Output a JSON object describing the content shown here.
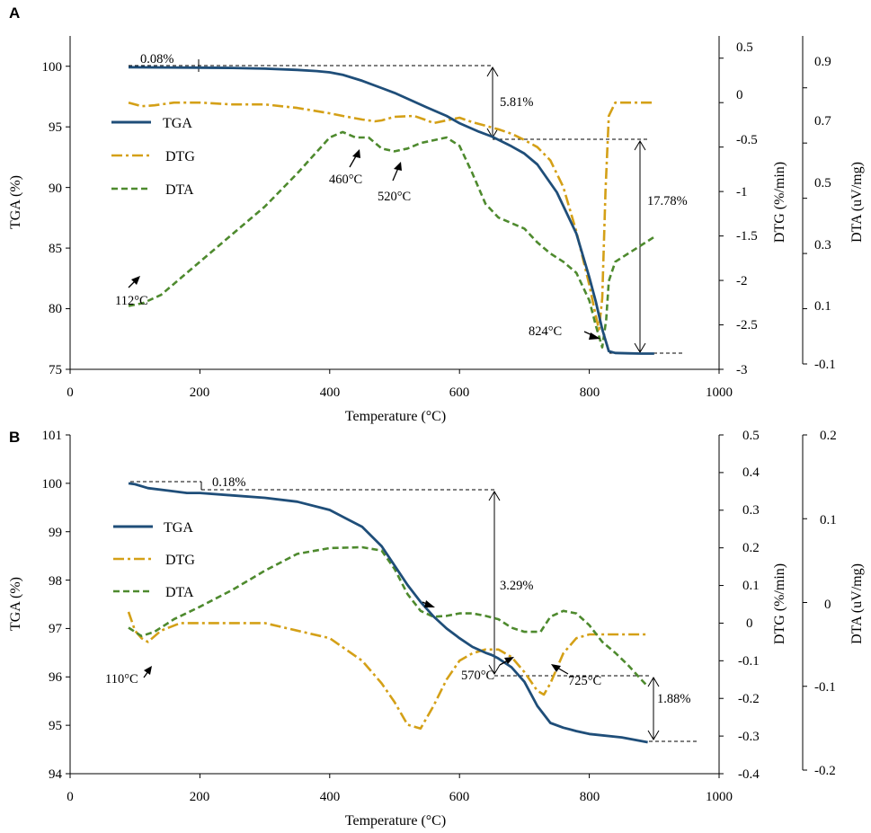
{
  "colors": {
    "tga": "#1f4e79",
    "dtg": "#d4a017",
    "dta": "#4e8a2e",
    "axis": "#000000",
    "guide": "#000000"
  },
  "chart_data": [
    {
      "panel": "A",
      "type": "line",
      "xlabel": "Temperature (°C)",
      "y1label": "TGA (%)",
      "y2label": "DTG (%/min)",
      "y3label": "DTA (uV/mg)",
      "xlim": [
        0,
        1000
      ],
      "y1lim": [
        75,
        102.5
      ],
      "y2lim": [
        -3,
        0.75
      ],
      "y3lim": [
        -0.1,
        1.0
      ],
      "xticks": [
        "0",
        "200",
        "400",
        "600",
        "800",
        "1000"
      ],
      "y1ticks": [
        "75",
        "80",
        "85",
        "90",
        "95",
        "100"
      ],
      "y2ticks": [
        "-3",
        "-2.5",
        "-2",
        "-1.5",
        "-1",
        "-0.5",
        "0",
        "0.5"
      ],
      "y3ticks": [
        "-0.1",
        "0.1",
        "0.3",
        "0.5",
        "0.7",
        "0.9"
      ],
      "legend": [
        "TGA",
        "DTG",
        "DTA"
      ],
      "series": [
        {
          "name": "TGA",
          "axis": "y1",
          "x": [
            90,
            150,
            200,
            250,
            300,
            350,
            380,
            400,
            420,
            450,
            480,
            500,
            550,
            580,
            600,
            630,
            650,
            680,
            700,
            720,
            750,
            780,
            800,
            810,
            820,
            830,
            840,
            860,
            880,
            900
          ],
          "values": [
            99.92,
            99.9,
            99.88,
            99.86,
            99.8,
            99.7,
            99.6,
            99.5,
            99.3,
            98.8,
            98.2,
            97.8,
            96.6,
            95.9,
            95.3,
            94.6,
            94.2,
            93.4,
            92.8,
            91.9,
            89.6,
            86.2,
            82.6,
            80.6,
            78.3,
            76.5,
            76.35,
            76.32,
            76.3,
            76.3
          ]
        },
        {
          "name": "DTG",
          "axis": "y2",
          "x": [
            90,
            110,
            130,
            160,
            200,
            250,
            300,
            350,
            400,
            420,
            450,
            470,
            480,
            500,
            530,
            550,
            560,
            580,
            600,
            620,
            640,
            660,
            680,
            700,
            720,
            740,
            760,
            780,
            790,
            800,
            810,
            815,
            820,
            825,
            830,
            840,
            850,
            860,
            880,
            900
          ],
          "values": [
            0,
            -0.04,
            -0.03,
            0,
            0,
            -0.02,
            -0.02,
            -0.06,
            -0.12,
            -0.15,
            -0.19,
            -0.21,
            -0.2,
            -0.16,
            -0.15,
            -0.2,
            -0.23,
            -0.2,
            -0.17,
            -0.22,
            -0.26,
            -0.3,
            -0.35,
            -0.42,
            -0.5,
            -0.65,
            -0.95,
            -1.45,
            -1.75,
            -2.05,
            -2.4,
            -2.55,
            -2.2,
            -1.0,
            -0.15,
            0,
            0,
            0,
            0,
            0
          ]
        },
        {
          "name": "DTA",
          "axis": "y3",
          "x": [
            90,
            112,
            140,
            200,
            250,
            300,
            350,
            400,
            420,
            440,
            460,
            480,
            500,
            520,
            540,
            560,
            580,
            600,
            620,
            640,
            660,
            680,
            700,
            720,
            740,
            760,
            780,
            800,
            810,
            820,
            826,
            830,
            840,
            860,
            880,
            900
          ],
          "values": [
            0.11,
            0.12,
            0.15,
            0.27,
            0.37,
            0.47,
            0.59,
            0.72,
            0.74,
            0.72,
            0.72,
            0.68,
            0.67,
            0.68,
            0.7,
            0.71,
            0.72,
            0.69,
            0.59,
            0.48,
            0.43,
            0.41,
            0.39,
            0.34,
            0.3,
            0.27,
            0.23,
            0.13,
            0.04,
            -0.04,
            0.06,
            0.2,
            0.27,
            0.3,
            0.33,
            0.36
          ]
        }
      ],
      "annotations": [
        {
          "text": "0.08%",
          "x": 100,
          "y": 100.2
        },
        {
          "text": "5.81%",
          "x": 655,
          "y": 97.3
        },
        {
          "text": "17.78%",
          "x": 880,
          "y": 88.5
        },
        {
          "text": "460°C",
          "x": 415,
          "y": 89.9
        },
        {
          "text": "520°C",
          "x": 475,
          "y": 88.9
        },
        {
          "text": "112°C",
          "x": 118,
          "y": 79.7
        },
        {
          "text": "824°C",
          "x": 765,
          "y": 77.1
        }
      ]
    },
    {
      "panel": "B",
      "type": "line",
      "xlabel": "Temperature (°C)",
      "y1label": "TGA (%)",
      "y2label": "DTG (%/min)",
      "y3label": "DTA (uV/mg)",
      "xlim": [
        0,
        1000
      ],
      "y1lim": [
        94,
        101
      ],
      "y2lim": [
        -0.4,
        0.5
      ],
      "y3lim": [
        -0.2,
        0.2
      ],
      "xticks": [
        "0",
        "200",
        "400",
        "600",
        "800",
        "1000"
      ],
      "y1ticks": [
        "94",
        "95",
        "96",
        "97",
        "98",
        "99",
        "100",
        "101"
      ],
      "y2ticks": [
        "-0.4",
        "-0.3",
        "-0.2",
        "-0.1",
        "0",
        "0.1",
        "0.2",
        "0.3",
        "0.4",
        "0.5"
      ],
      "y3ticks": [
        "-0.2",
        "-0.1",
        "0",
        "0.1",
        "0.2"
      ],
      "legend": [
        "TGA",
        "DTG",
        "DTA"
      ],
      "series": [
        {
          "name": "TGA",
          "axis": "y1",
          "x": [
            90,
            100,
            120,
            150,
            180,
            200,
            250,
            300,
            350,
            400,
            450,
            480,
            500,
            520,
            540,
            560,
            580,
            600,
            620,
            640,
            650,
            660,
            680,
            700,
            720,
            740,
            760,
            780,
            800,
            850,
            890
          ],
          "values": [
            100,
            99.98,
            99.9,
            99.85,
            99.8,
            99.8,
            99.75,
            99.7,
            99.62,
            99.45,
            99.1,
            98.7,
            98.3,
            97.9,
            97.55,
            97.25,
            97.0,
            96.8,
            96.62,
            96.5,
            96.45,
            96.38,
            96.2,
            95.9,
            95.4,
            95.05,
            94.95,
            94.88,
            94.82,
            94.75,
            94.65
          ]
        },
        {
          "name": "DTG",
          "axis": "y2",
          "x": [
            90,
            100,
            110,
            120,
            140,
            170,
            200,
            250,
            300,
            350,
            400,
            450,
            480,
            500,
            520,
            540,
            560,
            580,
            600,
            620,
            640,
            660,
            680,
            700,
            720,
            730,
            740,
            760,
            780,
            800,
            850,
            890
          ],
          "values": [
            0.03,
            -0.02,
            -0.04,
            -0.05,
            -0.02,
            0,
            0,
            0,
            0,
            -0.02,
            -0.04,
            -0.1,
            -0.16,
            -0.21,
            -0.27,
            -0.28,
            -0.22,
            -0.15,
            -0.1,
            -0.08,
            -0.07,
            -0.07,
            -0.09,
            -0.13,
            -0.18,
            -0.19,
            -0.16,
            -0.08,
            -0.04,
            -0.03,
            -0.03,
            -0.03
          ]
        },
        {
          "name": "DTA",
          "axis": "y3",
          "x": [
            90,
            110,
            130,
            160,
            200,
            250,
            300,
            350,
            400,
            450,
            480,
            500,
            520,
            540,
            560,
            580,
            600,
            620,
            640,
            660,
            680,
            700,
            725,
            740,
            760,
            780,
            800,
            820,
            840,
            860,
            880,
            890
          ],
          "values": [
            -0.03,
            -0.04,
            -0.035,
            -0.02,
            -0.005,
            0.015,
            0.038,
            0.058,
            0.065,
            0.066,
            0.062,
            0.04,
            0.01,
            -0.01,
            -0.017,
            -0.016,
            -0.013,
            -0.013,
            -0.016,
            -0.02,
            -0.03,
            -0.035,
            -0.035,
            -0.017,
            -0.01,
            -0.013,
            -0.027,
            -0.047,
            -0.06,
            -0.075,
            -0.092,
            -0.1
          ]
        }
      ],
      "annotations": [
        {
          "text": "0.18%",
          "x": 220,
          "y": 100.05
        },
        {
          "text": "3.29%",
          "x": 655,
          "y": 98.2
        },
        {
          "text": "1.88%",
          "x": 895,
          "y": 95.5
        },
        {
          "text": "110°C",
          "x": 60,
          "y": 96.1
        },
        {
          "text": "570°C",
          "x": 520,
          "y": 96.2
        },
        {
          "text": "725°C",
          "x": 770,
          "y": 96.2
        }
      ]
    }
  ]
}
